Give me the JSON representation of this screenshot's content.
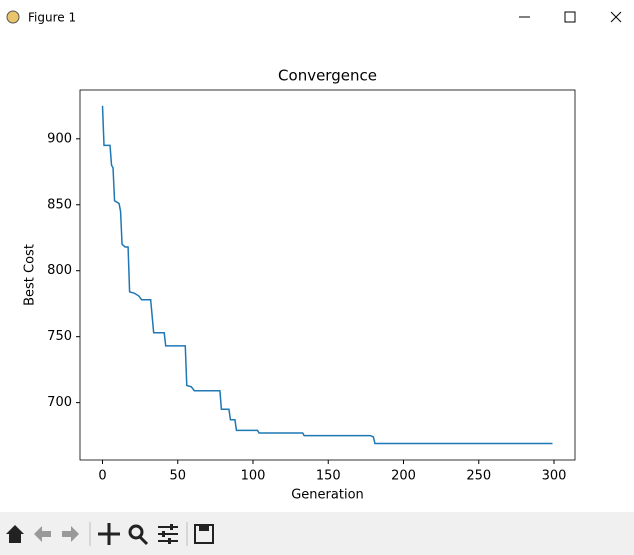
{
  "window": {
    "title": "Figure 1"
  },
  "chart_data": {
    "type": "line",
    "title": "Convergence",
    "x_label": "Generation",
    "y_label": "Best Cost",
    "x": [
      0,
      1,
      5,
      6,
      7,
      8,
      11,
      12,
      13,
      15,
      17,
      18,
      21,
      24,
      26,
      32,
      34,
      41,
      42,
      55,
      56,
      59,
      61,
      78,
      79,
      84,
      85,
      88,
      89,
      103,
      104,
      133,
      134,
      178,
      180,
      181,
      299
    ],
    "values": [
      925,
      895,
      895,
      880,
      878,
      853,
      851,
      845,
      820,
      818,
      818,
      784,
      783,
      781,
      778,
      778,
      753,
      753,
      743,
      743,
      713,
      712,
      709,
      709,
      695,
      695,
      687,
      687,
      679,
      679,
      677,
      677,
      675,
      675,
      674,
      669,
      669
    ],
    "color": "#1f77b4",
    "xlim": [
      -14.95,
      313.95
    ],
    "xticks": [
      0,
      50,
      100,
      150,
      200,
      250,
      300
    ],
    "ylim": [
      656.5,
      937
    ],
    "yticks": [
      700,
      750,
      800,
      850,
      900
    ],
    "grid": false
  }
}
